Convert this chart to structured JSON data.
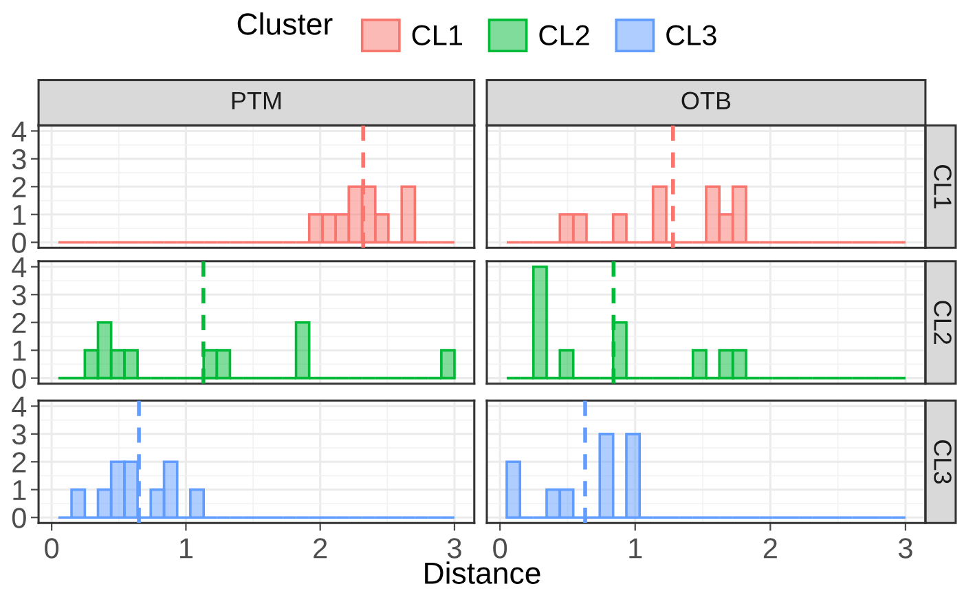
{
  "chart_data": [
    {
      "type": "histogram",
      "title": "PTM",
      "legend": "top",
      "legend_title": "Cluster",
      "tick_labels": "y",
      "grid": true,
      "bins": [
        0.05,
        0.148,
        0.247,
        0.345,
        0.443,
        0.542,
        0.64,
        0.738,
        0.837,
        0.935,
        1.033,
        1.132,
        1.23,
        1.328,
        1.427,
        1.525,
        1.623,
        1.722,
        1.82,
        1.918,
        2.017,
        2.115,
        2.213,
        2.312,
        2.41,
        2.508,
        2.607,
        2.705,
        2.803,
        2.902,
        3.0
      ],
      "series": [
        {
          "name": "CL1",
          "color": "#f8766d",
          "values": [
            0,
            0,
            0,
            0,
            0,
            0,
            0,
            0,
            0,
            0,
            0,
            0,
            0,
            0,
            0,
            0,
            0,
            0,
            0,
            1,
            1,
            1,
            2,
            2,
            1,
            0,
            2,
            0,
            0,
            0
          ]
        }
      ],
      "ref_lines": [
        {
          "axis": "x",
          "value": 2.32,
          "color": "#f8766d",
          "line_style": "dashed"
        }
      ],
      "xlim": [
        -0.0975,
        3.1475
      ],
      "xticks": [
        0,
        1,
        2,
        3
      ],
      "ylim": [
        -0.2,
        4.2
      ],
      "yticks": [
        0,
        1,
        2,
        3,
        4
      ]
    },
    {
      "type": "histogram",
      "title": "OTB",
      "y2label": "CL1",
      "tick_labels": false,
      "grid": true,
      "bins": [
        0.05,
        0.148,
        0.247,
        0.345,
        0.443,
        0.542,
        0.64,
        0.738,
        0.837,
        0.935,
        1.033,
        1.132,
        1.23,
        1.328,
        1.427,
        1.525,
        1.623,
        1.722,
        1.82,
        1.918,
        2.017,
        2.115,
        2.213,
        2.312,
        2.41,
        2.508,
        2.607,
        2.705,
        2.803,
        2.902,
        3.0
      ],
      "series": [
        {
          "color": "#f8766d",
          "values": [
            0,
            0,
            0,
            0,
            1,
            1,
            0,
            0,
            1,
            0,
            0,
            2,
            0,
            0,
            0,
            2,
            1,
            2,
            0,
            0,
            0,
            0,
            0,
            0,
            0,
            0,
            0,
            0,
            0,
            0
          ]
        }
      ],
      "ref_lines": [
        {
          "axis": "x",
          "value": 1.28,
          "color": "#f8766d",
          "line_style": "dashed"
        }
      ],
      "xlim": [
        -0.0975,
        3.1475
      ],
      "xticks": [
        0,
        1,
        2,
        3
      ],
      "ylim": [
        -0.2,
        4.2
      ],
      "yticks": [
        0,
        1,
        2,
        3,
        4
      ]
    },
    {
      "type": "histogram",
      "legend": "top",
      "tick_labels": "y",
      "grid": true,
      "bins": [
        0.05,
        0.148,
        0.247,
        0.345,
        0.443,
        0.542,
        0.64,
        0.738,
        0.837,
        0.935,
        1.033,
        1.132,
        1.23,
        1.328,
        1.427,
        1.525,
        1.623,
        1.722,
        1.82,
        1.918,
        2.017,
        2.115,
        2.213,
        2.312,
        2.41,
        2.508,
        2.607,
        2.705,
        2.803,
        2.902,
        3.0
      ],
      "series": [
        {
          "name": "CL2",
          "color": "#00ba38",
          "values": [
            0,
            0,
            1,
            2,
            1,
            1,
            0,
            0,
            0,
            0,
            0,
            1,
            1,
            0,
            0,
            0,
            0,
            0,
            2,
            0,
            0,
            0,
            0,
            0,
            0,
            0,
            0,
            0,
            0,
            1
          ]
        }
      ],
      "ref_lines": [
        {
          "axis": "x",
          "value": 1.13,
          "color": "#00ba38",
          "line_style": "dashed"
        }
      ],
      "xlim": [
        -0.0975,
        3.1475
      ],
      "xticks": [
        0,
        1,
        2,
        3
      ],
      "ylim": [
        -0.2,
        4.2
      ],
      "yticks": [
        0,
        1,
        2,
        3,
        4
      ]
    },
    {
      "type": "histogram",
      "y2label": "CL2",
      "tick_labels": false,
      "grid": true,
      "bins": [
        0.05,
        0.148,
        0.247,
        0.345,
        0.443,
        0.542,
        0.64,
        0.738,
        0.837,
        0.935,
        1.033,
        1.132,
        1.23,
        1.328,
        1.427,
        1.525,
        1.623,
        1.722,
        1.82,
        1.918,
        2.017,
        2.115,
        2.213,
        2.312,
        2.41,
        2.508,
        2.607,
        2.705,
        2.803,
        2.902,
        3.0
      ],
      "series": [
        {
          "color": "#00ba38",
          "values": [
            0,
            0,
            4,
            0,
            1,
            0,
            0,
            0,
            2,
            0,
            0,
            0,
            0,
            0,
            1,
            0,
            1,
            1,
            0,
            0,
            0,
            0,
            0,
            0,
            0,
            0,
            0,
            0,
            0,
            0
          ]
        }
      ],
      "ref_lines": [
        {
          "axis": "x",
          "value": 0.84,
          "color": "#00ba38",
          "line_style": "dashed"
        }
      ],
      "xlim": [
        -0.0975,
        3.1475
      ],
      "xticks": [
        0,
        1,
        2,
        3
      ],
      "ylim": [
        -0.2,
        4.2
      ],
      "yticks": [
        0,
        1,
        2,
        3,
        4
      ]
    },
    {
      "type": "histogram",
      "xlabel": "Distance",
      "legend": "top",
      "grid": true,
      "bins": [
        0.05,
        0.148,
        0.247,
        0.345,
        0.443,
        0.542,
        0.64,
        0.738,
        0.837,
        0.935,
        1.033,
        1.132,
        1.23,
        1.328,
        1.427,
        1.525,
        1.623,
        1.722,
        1.82,
        1.918,
        2.017,
        2.115,
        2.213,
        2.312,
        2.41,
        2.508,
        2.607,
        2.705,
        2.803,
        2.902,
        3.0
      ],
      "series": [
        {
          "name": "CL3",
          "color": "#619cff",
          "values": [
            0,
            1,
            0,
            1,
            2,
            2,
            0,
            1,
            2,
            0,
            1,
            0,
            0,
            0,
            0,
            0,
            0,
            0,
            0,
            0,
            0,
            0,
            0,
            0,
            0,
            0,
            0,
            0,
            0,
            0
          ]
        }
      ],
      "ref_lines": [
        {
          "axis": "x",
          "value": 0.65,
          "color": "#619cff",
          "line_style": "dashed"
        }
      ],
      "xlim": [
        -0.0975,
        3.1475
      ],
      "xticks": [
        0,
        1,
        2,
        3
      ],
      "ylim": [
        -0.2,
        4.2
      ],
      "yticks": [
        0,
        1,
        2,
        3,
        4
      ]
    },
    {
      "type": "histogram",
      "y2label": "CL3",
      "tick_labels": "x",
      "grid": true,
      "bins": [
        0.05,
        0.148,
        0.247,
        0.345,
        0.443,
        0.542,
        0.64,
        0.738,
        0.837,
        0.935,
        1.033,
        1.132,
        1.23,
        1.328,
        1.427,
        1.525,
        1.623,
        1.722,
        1.82,
        1.918,
        2.017,
        2.115,
        2.213,
        2.312,
        2.41,
        2.508,
        2.607,
        2.705,
        2.803,
        2.902,
        3.0
      ],
      "series": [
        {
          "color": "#619cff",
          "values": [
            2,
            0,
            0,
            1,
            1,
            0,
            0,
            3,
            0,
            3,
            0,
            0,
            0,
            0,
            0,
            0,
            0,
            0,
            0,
            0,
            0,
            0,
            0,
            0,
            0,
            0,
            0,
            0,
            0,
            0
          ]
        }
      ],
      "ref_lines": [
        {
          "axis": "x",
          "value": 0.63,
          "color": "#619cff",
          "line_style": "dashed"
        }
      ],
      "xlim": [
        -0.0975,
        3.1475
      ],
      "xticks": [
        0,
        1,
        2,
        3
      ],
      "ylim": [
        -0.2,
        4.2
      ],
      "yticks": [
        0,
        1,
        2,
        3,
        4
      ]
    }
  ]
}
